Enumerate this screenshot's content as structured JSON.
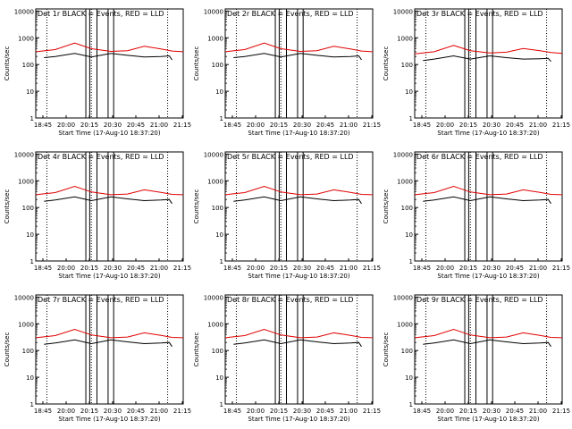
{
  "chart_data": [
    {
      "type": "line",
      "title": "Det 1r BLACK = Events, RED = LLD",
      "xlabel": "Start Time (17-Aug-10 18:37:20)",
      "ylabel": "Counts/sec",
      "yscale": "log",
      "ylim": [
        1,
        12000
      ],
      "xlim": [
        18.65,
        21.3
      ],
      "x_tick_labels": [
        "18:45",
        "20:00",
        "20:15",
        "20:30",
        "20:45",
        "21:00",
        "21:15"
      ],
      "y_tick_labels": [
        "1",
        "10",
        "100",
        "1000",
        "10000"
      ],
      "series": [
        {
          "name": "LLD",
          "color": "#e00000",
          "x": [
            18.65,
            19.0,
            19.35,
            19.65,
            20.0,
            20.3,
            20.6,
            20.9,
            21.1,
            21.3
          ],
          "y": [
            300,
            360,
            640,
            390,
            310,
            330,
            480,
            380,
            320,
            300
          ]
        },
        {
          "name": "Events",
          "color": "#000000",
          "x": [
            18.8,
            19.0,
            19.35,
            19.65,
            20.0,
            20.3,
            20.6,
            20.9,
            21.05,
            21.1
          ],
          "y": [
            180,
            200,
            260,
            190,
            260,
            220,
            190,
            200,
            210,
            150
          ]
        }
      ]
    },
    {
      "type": "line",
      "title": "Det 2r BLACK = Events, RED = LLD",
      "xlabel": "Start Time (17-Aug-10 18:37:20)",
      "ylabel": "Counts/sec",
      "yscale": "log",
      "ylim": [
        1,
        12000
      ],
      "xlim": [
        18.65,
        21.3
      ],
      "x_tick_labels": [
        "18:45",
        "20:00",
        "20:15",
        "20:30",
        "20:45",
        "21:00",
        "21:15"
      ],
      "y_tick_labels": [
        "1",
        "10",
        "100",
        "1000",
        "10000"
      ],
      "series": [
        {
          "name": "LLD",
          "color": "#e00000",
          "x": [
            18.65,
            19.0,
            19.35,
            19.65,
            20.0,
            20.3,
            20.6,
            20.9,
            21.1,
            21.3
          ],
          "y": [
            300,
            360,
            640,
            390,
            310,
            330,
            480,
            380,
            320,
            300
          ]
        },
        {
          "name": "Events",
          "color": "#000000",
          "x": [
            18.8,
            19.0,
            19.35,
            19.65,
            20.0,
            20.3,
            20.6,
            20.9,
            21.05,
            21.1
          ],
          "y": [
            180,
            200,
            260,
            190,
            260,
            220,
            190,
            200,
            210,
            150
          ]
        }
      ]
    },
    {
      "type": "line",
      "title": "Det 3r BLACK = Events, RED = LLD",
      "xlabel": "Start Time (17-Aug-10 18:37:20)",
      "ylabel": "Counts/sec",
      "yscale": "log",
      "ylim": [
        1,
        12000
      ],
      "xlim": [
        18.65,
        21.3
      ],
      "x_tick_labels": [
        "18:45",
        "20:00",
        "20:15",
        "20:30",
        "20:45",
        "21:00",
        "21:15"
      ],
      "y_tick_labels": [
        "1",
        "10",
        "100",
        "1000",
        "10000"
      ],
      "series": [
        {
          "name": "LLD",
          "color": "#e00000",
          "x": [
            18.65,
            19.0,
            19.35,
            19.65,
            20.0,
            20.3,
            20.6,
            20.9,
            21.1,
            21.3
          ],
          "y": [
            250,
            300,
            520,
            330,
            270,
            290,
            400,
            330,
            280,
            260
          ]
        },
        {
          "name": "Events",
          "color": "#000000",
          "x": [
            18.8,
            19.0,
            19.35,
            19.65,
            20.0,
            20.3,
            20.6,
            20.9,
            21.05,
            21.1
          ],
          "y": [
            140,
            160,
            210,
            160,
            210,
            180,
            160,
            165,
            170,
            130
          ]
        }
      ]
    },
    {
      "type": "line",
      "title": "Det 4r BLACK = Events, RED = LLD",
      "xlabel": "Start Time (17-Aug-10 18:37:20)",
      "ylabel": "Counts/sec",
      "yscale": "log",
      "ylim": [
        1,
        12000
      ],
      "xlim": [
        18.65,
        21.3
      ],
      "x_tick_labels": [
        "18:45",
        "20:00",
        "20:15",
        "20:30",
        "20:45",
        "21:00",
        "21:15"
      ],
      "y_tick_labels": [
        "1",
        "10",
        "100",
        "1000",
        "10000"
      ],
      "series": [
        {
          "name": "LLD",
          "color": "#e00000",
          "x": [
            18.65,
            19.0,
            19.35,
            19.65,
            20.0,
            20.3,
            20.6,
            20.9,
            21.1,
            21.3
          ],
          "y": [
            300,
            360,
            620,
            380,
            300,
            320,
            460,
            370,
            310,
            300
          ]
        },
        {
          "name": "Events",
          "color": "#000000",
          "x": [
            18.8,
            19.0,
            19.35,
            19.65,
            20.0,
            20.3,
            20.6,
            20.9,
            21.05,
            21.1
          ],
          "y": [
            170,
            190,
            250,
            180,
            250,
            210,
            180,
            190,
            200,
            140
          ]
        }
      ]
    },
    {
      "type": "line",
      "title": "Det 5r BLACK = Events, RED = LLD",
      "xlabel": "Start Time (17-Aug-10 18:37:20)",
      "ylabel": "Counts/sec",
      "yscale": "log",
      "ylim": [
        1,
        12000
      ],
      "xlim": [
        18.65,
        21.3
      ],
      "x_tick_labels": [
        "18:45",
        "20:00",
        "20:15",
        "20:30",
        "20:45",
        "21:00",
        "21:15"
      ],
      "y_tick_labels": [
        "1",
        "10",
        "100",
        "1000",
        "10000"
      ],
      "series": [
        {
          "name": "LLD",
          "color": "#e00000",
          "x": [
            18.65,
            19.0,
            19.35,
            19.65,
            20.0,
            20.3,
            20.6,
            20.9,
            21.1,
            21.3
          ],
          "y": [
            300,
            360,
            620,
            380,
            300,
            320,
            460,
            370,
            310,
            300
          ]
        },
        {
          "name": "Events",
          "color": "#000000",
          "x": [
            18.8,
            19.0,
            19.35,
            19.65,
            20.0,
            20.3,
            20.6,
            20.9,
            21.05,
            21.1
          ],
          "y": [
            170,
            190,
            250,
            180,
            250,
            210,
            180,
            190,
            200,
            140
          ]
        }
      ]
    },
    {
      "type": "line",
      "title": "Det 6r BLACK = Events, RED = LLD",
      "xlabel": "Start Time (17-Aug-10 18:37:20)",
      "ylabel": "Counts/sec",
      "yscale": "log",
      "ylim": [
        1,
        12000
      ],
      "xlim": [
        18.65,
        21.3
      ],
      "x_tick_labels": [
        "18:45",
        "20:00",
        "20:15",
        "20:30",
        "20:45",
        "21:00",
        "21:15"
      ],
      "y_tick_labels": [
        "1",
        "10",
        "100",
        "1000",
        "10000"
      ],
      "series": [
        {
          "name": "LLD",
          "color": "#e00000",
          "x": [
            18.65,
            19.0,
            19.35,
            19.65,
            20.0,
            20.3,
            20.6,
            20.9,
            21.1,
            21.3
          ],
          "y": [
            300,
            360,
            620,
            380,
            300,
            320,
            460,
            370,
            310,
            300
          ]
        },
        {
          "name": "Events",
          "color": "#000000",
          "x": [
            18.8,
            19.0,
            19.35,
            19.65,
            20.0,
            20.3,
            20.6,
            20.9,
            21.05,
            21.1
          ],
          "y": [
            170,
            190,
            250,
            180,
            250,
            210,
            180,
            190,
            200,
            140
          ]
        }
      ]
    },
    {
      "type": "line",
      "title": "Det 7r BLACK = Events, RED = LLD",
      "xlabel": "Start Time (17-Aug-10 18:37:20)",
      "ylabel": "Counts/sec",
      "yscale": "log",
      "ylim": [
        1,
        12000
      ],
      "xlim": [
        18.65,
        21.3
      ],
      "x_tick_labels": [
        "18:45",
        "20:00",
        "20:15",
        "20:30",
        "20:45",
        "21:00",
        "21:15"
      ],
      "y_tick_labels": [
        "1",
        "10",
        "100",
        "1000",
        "10000"
      ],
      "series": [
        {
          "name": "LLD",
          "color": "#e00000",
          "x": [
            18.65,
            19.0,
            19.35,
            19.65,
            20.0,
            20.3,
            20.6,
            20.9,
            21.1,
            21.3
          ],
          "y": [
            300,
            360,
            620,
            380,
            300,
            320,
            460,
            370,
            310,
            300
          ]
        },
        {
          "name": "Events",
          "color": "#000000",
          "x": [
            18.8,
            19.0,
            19.35,
            19.65,
            20.0,
            20.3,
            20.6,
            20.9,
            21.05,
            21.1
          ],
          "y": [
            170,
            190,
            250,
            180,
            250,
            210,
            180,
            190,
            200,
            140
          ]
        }
      ]
    },
    {
      "type": "line",
      "title": "Det 8r BLACK = Events, RED = LLD",
      "xlabel": "Start Time (17-Aug-10 18:37:20)",
      "ylabel": "Counts/sec",
      "yscale": "log",
      "ylim": [
        1,
        12000
      ],
      "xlim": [
        18.65,
        21.3
      ],
      "x_tick_labels": [
        "18:45",
        "20:00",
        "20:15",
        "20:30",
        "20:45",
        "21:00",
        "21:15"
      ],
      "y_tick_labels": [
        "1",
        "10",
        "100",
        "1000",
        "10000"
      ],
      "series": [
        {
          "name": "LLD",
          "color": "#e00000",
          "x": [
            18.65,
            19.0,
            19.35,
            19.65,
            20.0,
            20.3,
            20.6,
            20.9,
            21.1,
            21.3
          ],
          "y": [
            300,
            360,
            620,
            380,
            300,
            320,
            460,
            370,
            310,
            300
          ]
        },
        {
          "name": "Events",
          "color": "#000000",
          "x": [
            18.8,
            19.0,
            19.35,
            19.65,
            20.0,
            20.3,
            20.6,
            20.9,
            21.05,
            21.1
          ],
          "y": [
            170,
            190,
            250,
            180,
            250,
            210,
            180,
            190,
            200,
            140
          ]
        }
      ]
    },
    {
      "type": "line",
      "title": "Det 9r BLACK = Events, RED = LLD",
      "xlabel": "Start Time (17-Aug-10 18:37:20)",
      "ylabel": "Counts/sec",
      "yscale": "log",
      "ylim": [
        1,
        12000
      ],
      "xlim": [
        18.65,
        21.3
      ],
      "x_tick_labels": [
        "18:45",
        "20:00",
        "20:15",
        "20:30",
        "20:45",
        "21:00",
        "21:15"
      ],
      "y_tick_labels": [
        "1",
        "10",
        "100",
        "1000",
        "10000"
      ],
      "series": [
        {
          "name": "LLD",
          "color": "#e00000",
          "x": [
            18.65,
            19.0,
            19.35,
            19.65,
            20.0,
            20.3,
            20.6,
            20.9,
            21.1,
            21.3
          ],
          "y": [
            300,
            360,
            620,
            380,
            300,
            320,
            460,
            370,
            310,
            300
          ]
        },
        {
          "name": "Events",
          "color": "#000000",
          "x": [
            18.8,
            19.0,
            19.35,
            19.65,
            20.0,
            20.3,
            20.6,
            20.9,
            21.05,
            21.1
          ],
          "y": [
            170,
            190,
            250,
            180,
            250,
            210,
            180,
            190,
            200,
            140
          ]
        }
      ]
    }
  ]
}
